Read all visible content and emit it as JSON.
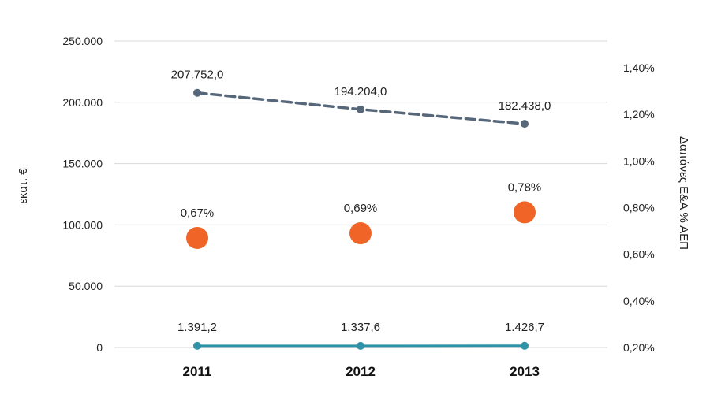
{
  "chart_data": {
    "type": "line",
    "categories": [
      "2011",
      "2012",
      "2013"
    ],
    "ylabel": "εκατ. €",
    "y2label": "Δαπάνες Ε&Α % ΑΕΠ",
    "ylim": [
      0,
      250000
    ],
    "y2lim": [
      0.002,
      0.014
    ],
    "y_ticks": [
      "0",
      "50.000",
      "100.000",
      "150.000",
      "200.000",
      "250.000"
    ],
    "y2_ticks": [
      "0,20%",
      "0,40%",
      "0,60%",
      "0,80%",
      "1,00%",
      "1,20%",
      "1,40%"
    ],
    "grid": true,
    "legend": "none",
    "series": [
      {
        "axis": "left",
        "style": "dashed-line",
        "color": "#56677a",
        "values": [
          207752.0,
          194204.0,
          182438.0
        ],
        "labels": [
          "207.752,0",
          "194.204,0",
          "182.438,0"
        ]
      },
      {
        "axis": "left",
        "style": "solid-line",
        "color": "#2f93a8",
        "values": [
          1391.2,
          1337.6,
          1426.7
        ],
        "labels": [
          "1.391,2",
          "1.337,6",
          "1.426,7"
        ]
      },
      {
        "axis": "right",
        "style": "markers",
        "color": "#f06427",
        "values": [
          0.0067,
          0.0069,
          0.0078
        ],
        "labels": [
          "0,67%",
          "0,69%",
          "0,78%"
        ]
      }
    ]
  }
}
